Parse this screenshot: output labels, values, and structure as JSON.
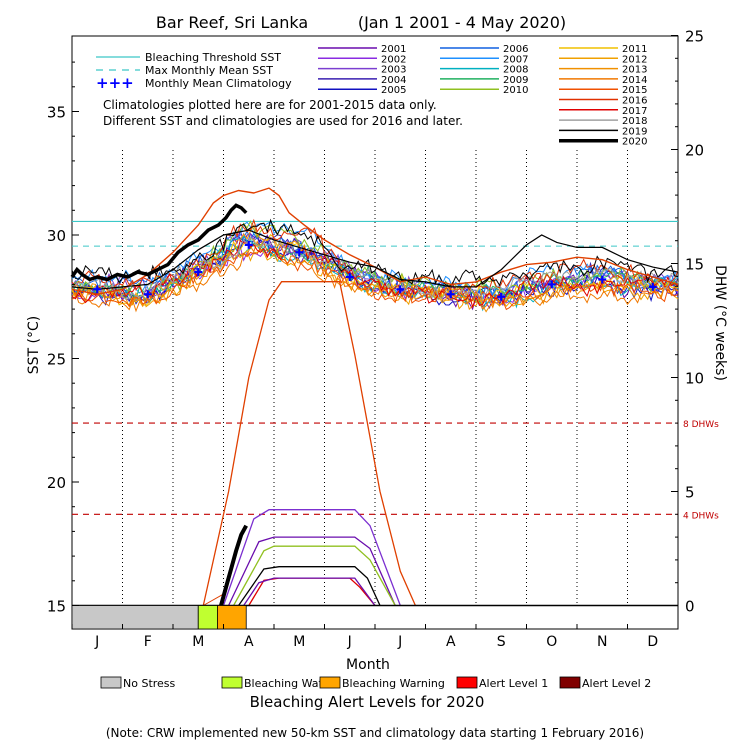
{
  "chart_data": {
    "type": "line",
    "title": "Bar Reef, Sri Lanka",
    "subtitle": "(Jan 1 2001 - 4 May 2020)",
    "xlabel": "Month",
    "ylabel_left": "SST (°C)",
    "ylabel_right": "DHW (°C weeks)",
    "x_categories": [
      "J",
      "F",
      "M",
      "A",
      "M",
      "J",
      "J",
      "A",
      "S",
      "O",
      "N",
      "D"
    ],
    "y_left_ticks": [
      "15",
      "20",
      "25",
      "30",
      "35"
    ],
    "y_left_range": [
      15,
      37.5
    ],
    "y_right_ticks": [
      "0",
      "5",
      "10",
      "15",
      "20",
      "25"
    ],
    "y_right_range": [
      0,
      25
    ],
    "grid": "dotted vertical lines at month boundaries",
    "reference_lines": [
      {
        "name": "Bleaching Threshold SST",
        "value": 30.55,
        "axis": "left",
        "color": "#3cc8c8",
        "style": "solid"
      },
      {
        "name": "Max Monthly Mean SST",
        "value": 29.55,
        "axis": "left",
        "color": "#3cc8c8",
        "style": "dashed"
      },
      {
        "name": "8 DHWs",
        "value": 8,
        "axis": "right",
        "color": "#c00000",
        "style": "dashed",
        "label": "8 DHWs"
      },
      {
        "name": "4 DHWs",
        "value": 4,
        "axis": "right",
        "color": "#c00000",
        "style": "dashed",
        "label": "4 DHWs"
      }
    ],
    "legend_left": [
      {
        "label": "Bleaching Threshold SST",
        "kind": "line-solid",
        "color": "#3cc8c8"
      },
      {
        "label": "Max Monthly Mean SST",
        "kind": "line-dashed",
        "color": "#3cc8c8"
      },
      {
        "label": "Monthly Mean Climatology",
        "kind": "crosses",
        "color": "#0000ff"
      }
    ],
    "notes": [
      "Climatologies plotted here are for 2001-2015 data only.",
      "Different SST and climatologies are used for 2016 and later."
    ],
    "series": [
      {
        "name": "2001",
        "color": "#6a0dad"
      },
      {
        "name": "2002",
        "color": "#8a2be2"
      },
      {
        "name": "2003",
        "color": "#7b3fd0"
      },
      {
        "name": "2004",
        "color": "#3a1fb0"
      },
      {
        "name": "2005",
        "color": "#1010c0"
      },
      {
        "name": "2006",
        "color": "#1060e0"
      },
      {
        "name": "2007",
        "color": "#1e90ff"
      },
      {
        "name": "2008",
        "color": "#00b0c0"
      },
      {
        "name": "2009",
        "color": "#20b060"
      },
      {
        "name": "2010",
        "color": "#90c020"
      },
      {
        "name": "2011",
        "color": "#f0c000"
      },
      {
        "name": "2012",
        "color": "#f0a000"
      },
      {
        "name": "2013",
        "color": "#f09000"
      },
      {
        "name": "2014",
        "color": "#f07800"
      },
      {
        "name": "2015",
        "color": "#f05000"
      },
      {
        "name": "2016",
        "color": "#e03000"
      },
      {
        "name": "2017",
        "color": "#e00000"
      },
      {
        "name": "2018",
        "color": "#a0a0a0"
      },
      {
        "name": "2019",
        "color": "#000000"
      },
      {
        "name": "2020",
        "color": "#000000"
      }
    ],
    "climatology_points": [
      [
        0.5,
        27.8
      ],
      [
        1.5,
        27.6
      ],
      [
        2.5,
        28.5
      ],
      [
        3.5,
        29.6
      ],
      [
        4.5,
        29.3
      ],
      [
        5.5,
        28.3
      ],
      [
        6.5,
        27.8
      ],
      [
        7.5,
        27.6
      ],
      [
        8.5,
        27.5
      ],
      [
        9.5,
        28.0
      ],
      [
        10.5,
        28.2
      ],
      [
        11.5,
        27.9
      ]
    ],
    "sst_2020": [
      [
        0.0,
        28.3
      ],
      [
        0.1,
        28.6
      ],
      [
        0.2,
        28.4
      ],
      [
        0.35,
        28.2
      ],
      [
        0.5,
        28.3
      ],
      [
        0.7,
        28.2
      ],
      [
        0.9,
        28.4
      ],
      [
        1.1,
        28.3
      ],
      [
        1.3,
        28.5
      ],
      [
        1.5,
        28.4
      ],
      [
        1.7,
        28.6
      ],
      [
        1.9,
        28.8
      ],
      [
        2.1,
        29.3
      ],
      [
        2.3,
        29.6
      ],
      [
        2.5,
        29.8
      ],
      [
        2.7,
        30.2
      ],
      [
        2.9,
        30.4
      ],
      [
        3.05,
        30.7
      ],
      [
        3.15,
        31.0
      ],
      [
        3.25,
        31.2
      ],
      [
        3.35,
        31.1
      ],
      [
        3.45,
        30.9
      ]
    ],
    "sst_2019": [
      [
        0.0,
        27.9
      ],
      [
        0.5,
        27.8
      ],
      [
        1.0,
        27.9
      ],
      [
        1.5,
        28.0
      ],
      [
        2.0,
        28.6
      ],
      [
        2.5,
        29.4
      ],
      [
        3.0,
        30.0
      ],
      [
        3.5,
        30.2
      ],
      [
        4.0,
        29.8
      ],
      [
        4.5,
        29.5
      ],
      [
        5.0,
        29.2
      ],
      [
        5.5,
        28.9
      ],
      [
        6.0,
        28.7
      ],
      [
        6.5,
        28.2
      ],
      [
        7.0,
        28.1
      ],
      [
        7.5,
        27.9
      ],
      [
        8.0,
        27.9
      ],
      [
        8.5,
        28.6
      ],
      [
        9.0,
        29.6
      ],
      [
        9.3,
        30.0
      ],
      [
        9.6,
        29.7
      ],
      [
        10.0,
        29.5
      ],
      [
        10.5,
        29.5
      ],
      [
        11.0,
        29.0
      ],
      [
        11.5,
        28.7
      ],
      [
        12.0,
        28.5
      ]
    ],
    "sst_2016": [
      [
        0.0,
        27.8
      ],
      [
        0.5,
        27.6
      ],
      [
        1.0,
        27.8
      ],
      [
        1.5,
        28.4
      ],
      [
        2.0,
        29.3
      ],
      [
        2.5,
        30.4
      ],
      [
        2.8,
        31.3
      ],
      [
        3.0,
        31.6
      ],
      [
        3.3,
        31.8
      ],
      [
        3.6,
        31.7
      ],
      [
        3.9,
        31.9
      ],
      [
        4.1,
        31.6
      ],
      [
        4.3,
        30.9
      ],
      [
        4.6,
        30.4
      ],
      [
        5.0,
        29.8
      ],
      [
        5.5,
        29.2
      ],
      [
        6.0,
        28.7
      ],
      [
        6.5,
        28.1
      ],
      [
        7.0,
        28.3
      ],
      [
        7.5,
        28.0
      ],
      [
        8.0,
        28.1
      ],
      [
        8.5,
        28.5
      ],
      [
        9.0,
        28.8
      ],
      [
        9.5,
        28.9
      ],
      [
        10.0,
        29.1
      ],
      [
        10.5,
        29.0
      ],
      [
        11.0,
        28.6
      ],
      [
        11.5,
        28.3
      ],
      [
        12.0,
        28.0
      ]
    ],
    "dhw_2020": [
      [
        2.95,
        0.0
      ],
      [
        3.05,
        0.8
      ],
      [
        3.15,
        1.6
      ],
      [
        3.25,
        2.4
      ],
      [
        3.35,
        3.1
      ],
      [
        3.45,
        3.5
      ]
    ],
    "dhw_traces": [
      {
        "year": "2016",
        "color": "#e04000",
        "points": [
          [
            2.6,
            0
          ],
          [
            3.1,
            5
          ],
          [
            3.5,
            10
          ],
          [
            3.9,
            13.4
          ],
          [
            4.15,
            14.2
          ],
          [
            5.3,
            14.2
          ],
          [
            5.6,
            11
          ],
          [
            6.1,
            5
          ],
          [
            6.5,
            1.5
          ],
          [
            6.8,
            0
          ]
        ]
      },
      {
        "year": "2010",
        "color": "#7b2fd0",
        "points": [
          [
            3.0,
            0
          ],
          [
            3.6,
            3.8
          ],
          [
            3.9,
            4.2
          ],
          [
            5.6,
            4.2
          ],
          [
            5.9,
            3.5
          ],
          [
            6.5,
            0
          ]
        ]
      },
      {
        "year": "2005",
        "color": "#6a0dad",
        "points": [
          [
            3.1,
            0
          ],
          [
            3.7,
            2.8
          ],
          [
            4.0,
            3.0
          ],
          [
            5.6,
            3.0
          ],
          [
            5.9,
            2.5
          ],
          [
            6.4,
            0
          ]
        ]
      },
      {
        "year": "2010b",
        "color": "#90c020",
        "points": [
          [
            3.2,
            0
          ],
          [
            3.8,
            2.4
          ],
          [
            4.0,
            2.6
          ],
          [
            5.6,
            2.6
          ],
          [
            5.9,
            2.0
          ],
          [
            6.4,
            0
          ]
        ]
      },
      {
        "year": "2019",
        "color": "#000000",
        "points": [
          [
            3.3,
            0
          ],
          [
            3.8,
            1.6
          ],
          [
            4.1,
            1.7
          ],
          [
            5.6,
            1.7
          ],
          [
            5.85,
            1.2
          ],
          [
            6.1,
            0
          ]
        ]
      },
      {
        "year": "2017",
        "color": "#e00000",
        "points": [
          [
            3.5,
            0
          ],
          [
            3.8,
            1.1
          ],
          [
            4.1,
            1.2
          ],
          [
            5.5,
            1.2
          ],
          [
            5.7,
            0.8
          ],
          [
            6.0,
            0
          ]
        ]
      },
      {
        "year": "2003",
        "color": "#6a0dad",
        "points": [
          [
            3.4,
            0
          ],
          [
            3.7,
            1.0
          ],
          [
            4.0,
            1.2
          ],
          [
            5.6,
            1.2
          ],
          [
            5.8,
            0.6
          ],
          [
            6.0,
            0
          ]
        ]
      }
    ],
    "dhw_bracket_2016": {
      "left": 3.0,
      "right": 5.35
    },
    "alert_levels_2020": [
      {
        "from": 0.0,
        "to": 2.5,
        "level": "No Stress",
        "color": "#c8c8c8"
      },
      {
        "from": 2.5,
        "to": 2.88,
        "level": "Bleaching Watch",
        "color": "#c0ff30"
      },
      {
        "from": 2.88,
        "to": 3.45,
        "level": "Bleaching Warning",
        "color": "#ffa500"
      }
    ],
    "alert_legend_title": "Bleaching Alert Levels for 2020",
    "alert_legend": [
      {
        "label": "No Stress",
        "color": "#c8c8c8"
      },
      {
        "label": "Bleaching Watch",
        "color": "#c0ff30"
      },
      {
        "label": "Bleaching Warning",
        "color": "#ffa500"
      },
      {
        "label": "Alert Level 1",
        "color": "#ff0000"
      },
      {
        "label": "Alert Level 2",
        "color": "#800000"
      }
    ],
    "footnote": "(Note: CRW implemented new 50-km SST and climatology data starting 1 February 2016)"
  }
}
